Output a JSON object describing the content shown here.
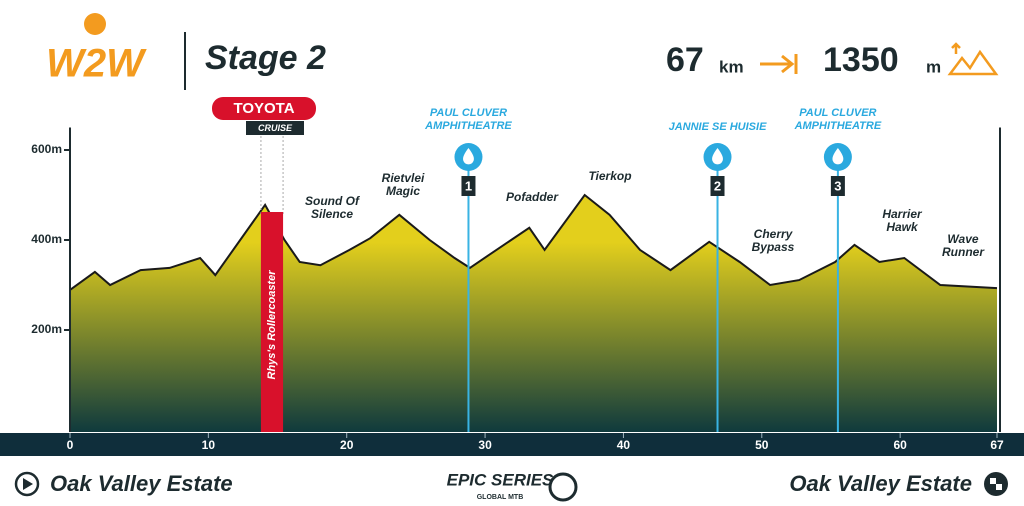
{
  "logo": "W2W",
  "chart_data": {
    "type": "area",
    "title": "Stage 2",
    "distance": {
      "value": 67,
      "unit": "km"
    },
    "climbing": {
      "value": 1350,
      "unit": "m"
    },
    "x": [
      0,
      1.8,
      2.9,
      5.1,
      7.2,
      9.4,
      10.5,
      12.3,
      14.1,
      15.5,
      16.6,
      18.1,
      20.2,
      21.7,
      23.8,
      26,
      27.8,
      28.9,
      30.3,
      33.2,
      34.3,
      37.2,
      39,
      41.2,
      43.4,
      46.2,
      48.4,
      50.6,
      52.7,
      55.3,
      56.7,
      58.5,
      60.3,
      62.9,
      67
    ],
    "values": [
      289,
      329,
      300,
      333,
      338,
      360,
      322,
      400,
      478,
      400,
      351,
      344,
      378,
      404,
      456,
      400,
      360,
      338,
      367,
      427,
      378,
      500,
      456,
      378,
      333,
      396,
      351,
      300,
      311,
      351,
      389,
      351,
      360,
      300,
      293
    ],
    "line_color": "#1a1a1a",
    "fill_colors": [
      "#e3cf1c",
      "#0f3a3d"
    ],
    "xlim": [
      0,
      67
    ],
    "xticks": [
      0,
      10,
      20,
      30,
      40,
      50,
      60,
      67
    ],
    "ylim": [
      0,
      650
    ],
    "yticks": [
      {
        "value": 200,
        "label": "200m"
      },
      {
        "value": 400,
        "label": "400m"
      },
      {
        "value": 600,
        "label": "600m"
      }
    ],
    "segments": [
      "Sound Of Silence",
      "Rietvlei Magic",
      "Pofadder",
      "Tierkop",
      "Cherry Bypass",
      "Harrier Hawk",
      "Wave Runner"
    ],
    "water_points": [
      {
        "label": "PAUL CLUVER AMPHITHEATRE",
        "number": 1,
        "km": 28.8
      },
      {
        "label": "JANNIE SE HUISIE",
        "number": 2,
        "km": 46.8
      },
      {
        "label": "PAUL CLUVER AMPHITHEATRE",
        "number": 3,
        "km": 55.5
      }
    ],
    "sponsor_segment": {
      "sponsor": "TOYOTA",
      "sub": "CRUISE",
      "name": "Rhys's Rollercoaster",
      "start": 13.8,
      "end": 15.4
    }
  },
  "footer": {
    "start": "Oak Valley Estate",
    "finish": "Oak Valley Estate",
    "series": "EPIC SERIES",
    "series_sub": "GLOBAL MTB"
  }
}
